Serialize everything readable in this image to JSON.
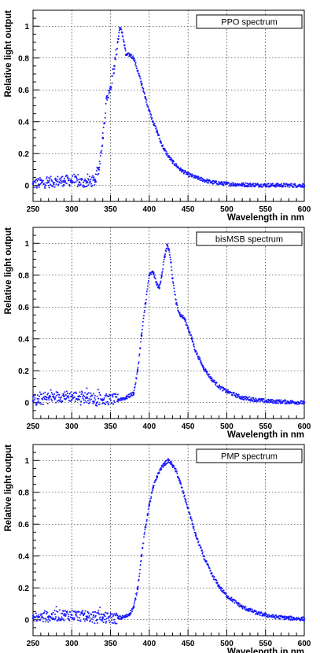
{
  "colors": {
    "points": "#1a1aff",
    "axes": "#000000",
    "background": "#ffffff"
  },
  "chart_data": [
    {
      "type": "scatter",
      "legend": "PPO spectrum",
      "legend_position": "top-right",
      "xlabel": "Wavelength in nm",
      "ylabel": "Relative light output",
      "xlim": [
        250,
        600
      ],
      "ylim": [
        -0.1,
        1.1
      ],
      "xticks": [
        250,
        300,
        350,
        400,
        450,
        500,
        550,
        600
      ],
      "xtick_labels": [
        "250",
        "300",
        "350",
        "400",
        "450",
        "500",
        "550",
        "600"
      ],
      "yticks": [
        0,
        0.2,
        0.4,
        0.6,
        0.8,
        1
      ],
      "ytick_labels": [
        "0",
        "0.2",
        "0.4",
        "0.6",
        "0.8",
        "1"
      ],
      "grid": true,
      "series": [
        {
          "x": [
            250,
            270,
            290,
            300,
            310,
            320,
            330,
            335,
            340,
            345,
            350,
            355,
            360,
            362,
            365,
            368,
            370,
            375,
            380,
            385,
            390,
            395,
            400,
            405,
            410,
            415,
            420,
            425,
            430,
            440,
            450,
            460,
            470,
            480,
            500,
            520,
            550,
            600
          ],
          "y": [
            0.01,
            0.02,
            0.03,
            0.03,
            0.02,
            0.02,
            0.03,
            0.1,
            0.3,
            0.55,
            0.62,
            0.75,
            0.92,
            0.99,
            0.96,
            0.88,
            0.82,
            0.82,
            0.8,
            0.72,
            0.64,
            0.55,
            0.47,
            0.4,
            0.34,
            0.27,
            0.22,
            0.18,
            0.15,
            0.1,
            0.07,
            0.05,
            0.035,
            0.02,
            0.01,
            0.005,
            0.002,
            0.0
          ]
        }
      ]
    },
    {
      "type": "scatter",
      "legend": "bisMSB spectrum",
      "legend_position": "top-right",
      "xlabel": "Wavelength in nm",
      "ylabel": "Relative light output",
      "xlim": [
        250,
        600
      ],
      "ylim": [
        -0.1,
        1.1
      ],
      "xticks": [
        250,
        300,
        350,
        400,
        450,
        500,
        550,
        600
      ],
      "xtick_labels": [
        "250",
        "300",
        "350",
        "400",
        "450",
        "500",
        "550",
        "600"
      ],
      "yticks": [
        0,
        0.2,
        0.4,
        0.6,
        0.8,
        1
      ],
      "ytick_labels": [
        "0",
        "0.2",
        "0.4",
        "0.6",
        "0.8",
        "1"
      ],
      "grid": true,
      "series": [
        {
          "x": [
            250,
            270,
            290,
            300,
            320,
            340,
            360,
            370,
            380,
            385,
            390,
            395,
            400,
            405,
            410,
            413,
            416,
            420,
            423,
            425,
            428,
            430,
            435,
            440,
            445,
            450,
            455,
            460,
            470,
            480,
            490,
            500,
            520,
            550,
            600
          ],
          "y": [
            0.01,
            0.03,
            0.04,
            0.04,
            0.03,
            0.02,
            0.02,
            0.03,
            0.06,
            0.2,
            0.42,
            0.62,
            0.8,
            0.82,
            0.74,
            0.72,
            0.8,
            0.92,
            0.99,
            0.96,
            0.88,
            0.78,
            0.62,
            0.55,
            0.53,
            0.47,
            0.4,
            0.32,
            0.22,
            0.15,
            0.1,
            0.07,
            0.03,
            0.01,
            0.0
          ]
        }
      ]
    },
    {
      "type": "scatter",
      "legend": "PMP spectrum",
      "legend_position": "top-right",
      "xlabel": "Wavelength in nm",
      "ylabel": "Relative light output",
      "xlim": [
        250,
        600
      ],
      "ylim": [
        -0.1,
        1.1
      ],
      "xticks": [
        250,
        300,
        350,
        400,
        450,
        500,
        550,
        600
      ],
      "xtick_labels": [
        "250",
        "300",
        "350",
        "400",
        "450",
        "500",
        "550",
        "600"
      ],
      "yticks": [
        0,
        0.2,
        0.4,
        0.6,
        0.8,
        1
      ],
      "ytick_labels": [
        "0",
        "0.2",
        "0.4",
        "0.6",
        "0.8",
        "1"
      ],
      "grid": true,
      "series": [
        {
          "x": [
            250,
            270,
            290,
            300,
            320,
            340,
            360,
            370,
            375,
            380,
            385,
            390,
            395,
            400,
            405,
            410,
            415,
            420,
            425,
            430,
            435,
            440,
            450,
            460,
            470,
            480,
            490,
            500,
            520,
            540,
            560,
            580,
            600
          ],
          "y": [
            0.01,
            0.02,
            0.03,
            0.03,
            0.02,
            0.01,
            0.01,
            0.02,
            0.04,
            0.08,
            0.2,
            0.4,
            0.58,
            0.72,
            0.83,
            0.9,
            0.95,
            0.98,
            1.0,
            0.97,
            0.93,
            0.86,
            0.7,
            0.53,
            0.4,
            0.29,
            0.21,
            0.15,
            0.08,
            0.04,
            0.02,
            0.01,
            0.005
          ]
        }
      ]
    }
  ]
}
